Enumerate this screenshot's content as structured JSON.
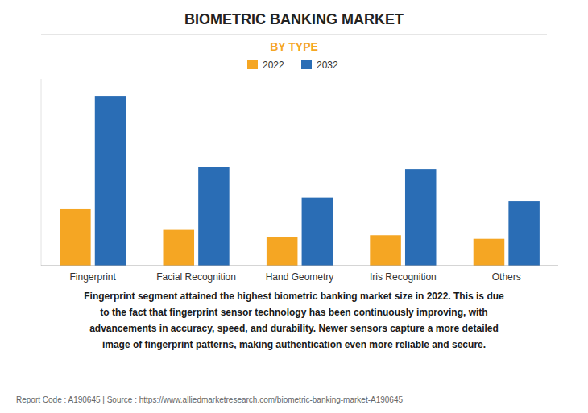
{
  "chart_data": {
    "type": "bar",
    "title": "BIOMETRIC BANKING MARKET",
    "subtitle": "BY TYPE",
    "categories": [
      "Fingerprint",
      "Facial Recognition",
      "Hand Geometry",
      "Iris Recognition",
      "Others"
    ],
    "series": [
      {
        "name": "2022",
        "color": "#F5A623",
        "values": [
          3.2,
          2.0,
          1.6,
          1.7,
          1.5
        ]
      },
      {
        "name": "2032",
        "color": "#2A6DB5",
        "values": [
          9.5,
          5.5,
          3.8,
          5.4,
          3.6
        ]
      }
    ],
    "ylim": [
      0,
      10.45
    ],
    "yticks": [],
    "grid": false,
    "legend": "top",
    "tick_labels": "x",
    "annotations": [
      "Fingerprint segment attained the highest biometric banking market size in 2022. This is due\nto the fact that fingerprint sensor technology has been continuously improving, with\nadvancements in accuracy, speed, and durability. Newer sensors capture a more detailed\nimage of fingerprint patterns, making authentication even more reliable and secure.",
      "Report Code : A190645  |  Source : https://www.alliedmarketresearch.com/biometric-banking-market-A190645"
    ]
  }
}
